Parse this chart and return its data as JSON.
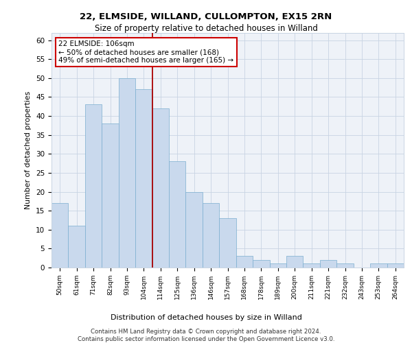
{
  "title1": "22, ELMSIDE, WILLAND, CULLOMPTON, EX15 2RN",
  "title2": "Size of property relative to detached houses in Willand",
  "xlabel": "Distribution of detached houses by size in Willand",
  "ylabel": "Number of detached properties",
  "categories": [
    "50sqm",
    "61sqm",
    "71sqm",
    "82sqm",
    "93sqm",
    "104sqm",
    "114sqm",
    "125sqm",
    "136sqm",
    "146sqm",
    "157sqm",
    "168sqm",
    "178sqm",
    "189sqm",
    "200sqm",
    "211sqm",
    "221sqm",
    "232sqm",
    "243sqm",
    "253sqm",
    "264sqm"
  ],
  "values": [
    17,
    11,
    43,
    38,
    50,
    47,
    42,
    28,
    20,
    17,
    13,
    3,
    2,
    1,
    3,
    1,
    2,
    1,
    0,
    1,
    1
  ],
  "bar_color": "#c9d9ed",
  "bar_edge_color": "#7aadcf",
  "grid_color": "#c8d4e3",
  "background_color": "#eef2f8",
  "vline_x": 5.5,
  "vline_color": "#aa0000",
  "annotation_text": "22 ELMSIDE: 106sqm\n← 50% of detached houses are smaller (168)\n49% of semi-detached houses are larger (165) →",
  "annotation_box_color": "#ffffff",
  "annotation_box_edge": "#cc0000",
  "footnote1": "Contains HM Land Registry data © Crown copyright and database right 2024.",
  "footnote2": "Contains public sector information licensed under the Open Government Licence v3.0.",
  "ylim": [
    0,
    62
  ],
  "yticks": [
    0,
    5,
    10,
    15,
    20,
    25,
    30,
    35,
    40,
    45,
    50,
    55,
    60
  ]
}
